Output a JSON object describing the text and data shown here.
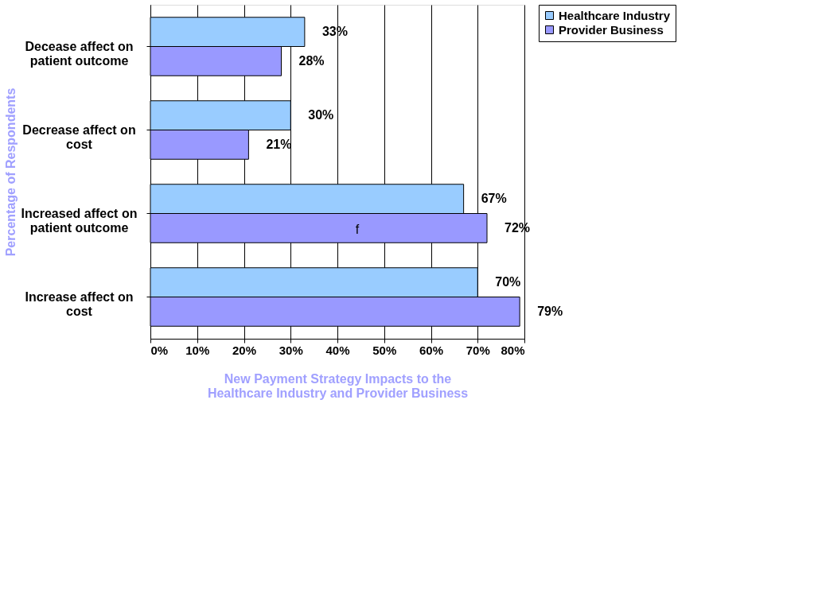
{
  "chart_data": {
    "type": "bar",
    "orientation": "horizontal",
    "categories": [
      "Decease affect on patient outcome",
      "Decrease affect on cost",
      "Increased affect on patient outcome",
      "Increase affect on cost"
    ],
    "series": [
      {
        "name": "Healthcare Industry",
        "color": "#99ccff",
        "values": [
          33,
          30,
          67,
          70
        ],
        "value_labels": [
          "33%",
          "30%",
          "67%",
          "70%"
        ]
      },
      {
        "name": "Provider Business",
        "color": "#9999ff",
        "values": [
          28,
          21,
          72,
          79
        ],
        "value_labels": [
          "28%",
          "21%",
          "72%",
          "79%"
        ]
      }
    ],
    "xlim": [
      0,
      80
    ],
    "xticks": [
      {
        "value": 0,
        "label": "0%"
      },
      {
        "value": 10,
        "label": "10%"
      },
      {
        "value": 20,
        "label": "20%"
      },
      {
        "value": 30,
        "label": "30%"
      },
      {
        "value": 40,
        "label": "40%"
      },
      {
        "value": 50,
        "label": "50%"
      },
      {
        "value": 60,
        "label": "60%"
      },
      {
        "value": 70,
        "label": "70%"
      },
      {
        "value": 80,
        "label": "80%"
      }
    ],
    "xlabel": "New Payment Strategy Impacts to the\nHealthcare Industry  and Provider Business",
    "ylabel": "Percentage of Respondents",
    "annotations": [
      "f"
    ],
    "grid": "x",
    "legend": "right"
  }
}
